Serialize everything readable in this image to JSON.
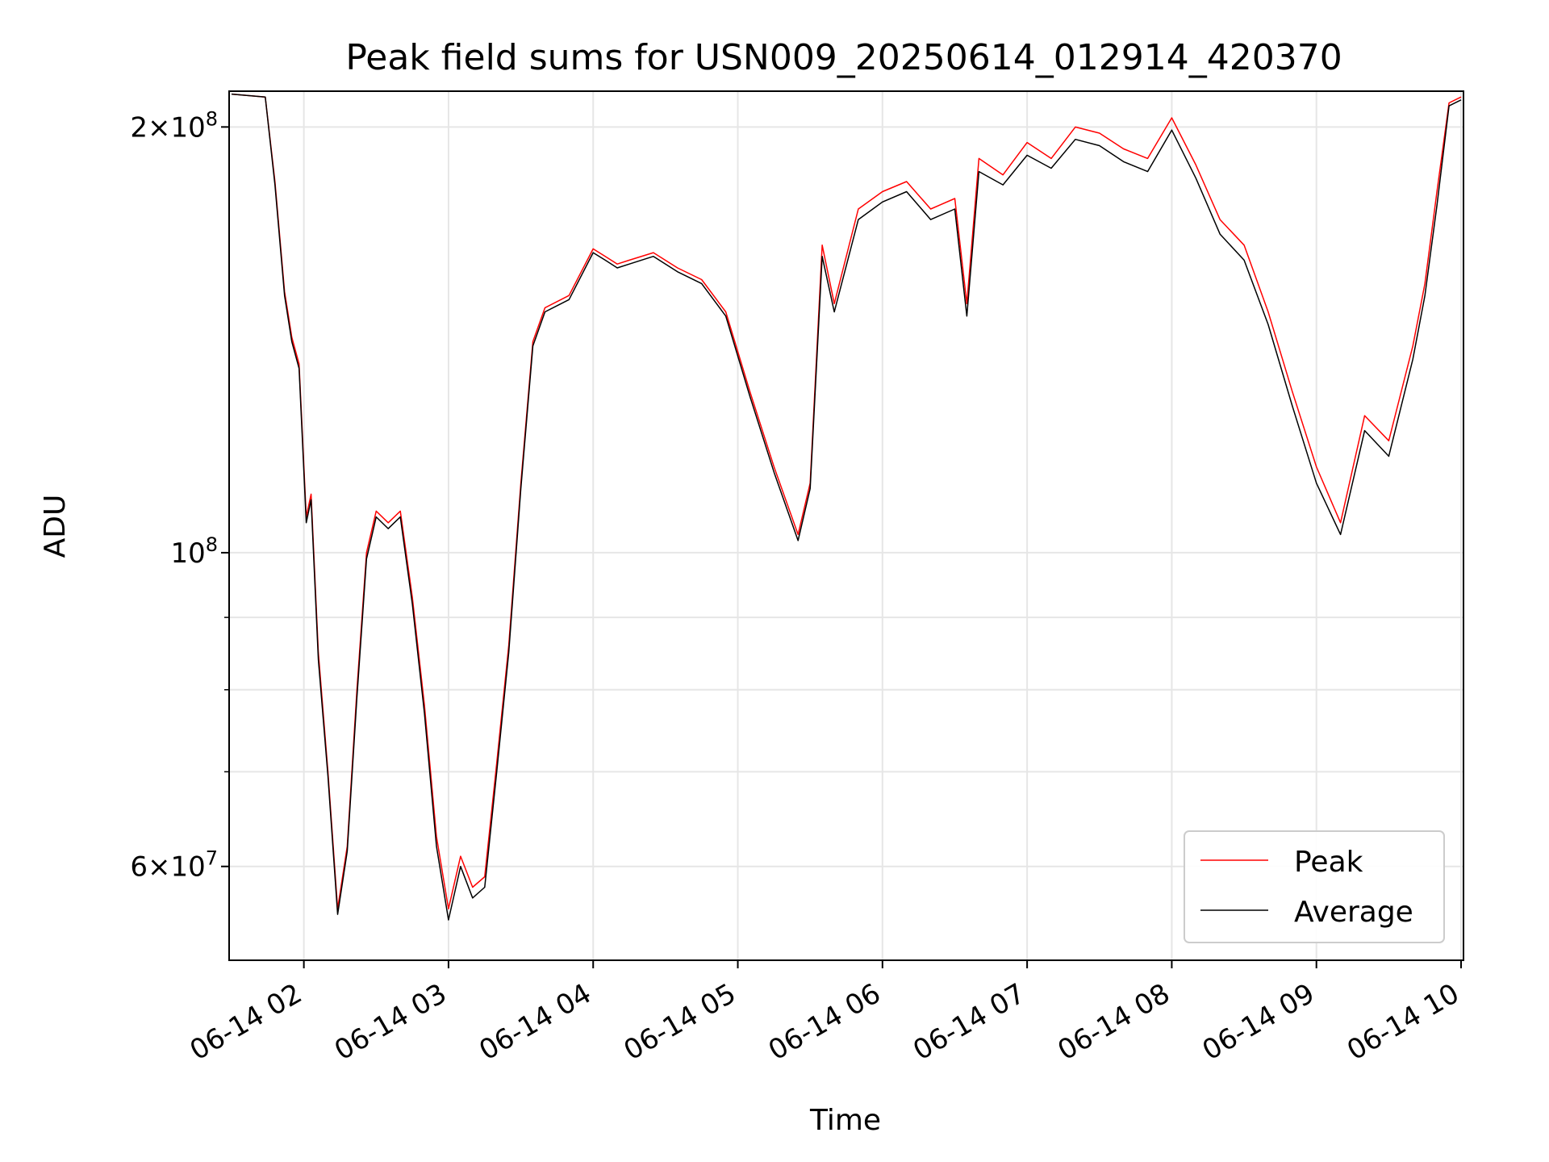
{
  "chart_data": {
    "type": "line",
    "title": "Peak field sums for USN009_20250614_012914_420370",
    "xlabel": "Time",
    "ylabel": "ADU",
    "y_scale": "log",
    "xlim": [
      "2025-06-14 01:29",
      "2025-06-14 10:01"
    ],
    "ylim": [
      51500000,
      212000000
    ],
    "grid": true,
    "legend_position": "lower right",
    "x_ticks": [
      "06-14 02",
      "06-14 03",
      "06-14 04",
      "06-14 05",
      "06-14 06",
      "06-14 07",
      "06-14 08",
      "06-14 09",
      "06-14 10"
    ],
    "x_tick_times": [
      "2025-06-14 02:00",
      "2025-06-14 03:00",
      "2025-06-14 04:00",
      "2025-06-14 05:00",
      "2025-06-14 06:00",
      "2025-06-14 07:00",
      "2025-06-14 08:00",
      "2025-06-14 09:00",
      "2025-06-14 10:00"
    ],
    "y_ticks": [
      {
        "value": 200000000,
        "mantissa": "2",
        "exponent": "8"
      },
      {
        "value": 100000000,
        "mantissa": "",
        "exponent": "8"
      },
      {
        "value": 60000000,
        "mantissa": "6",
        "exponent": "7"
      }
    ],
    "y_minor_ticks": [
      70000000,
      80000000,
      90000000,
      300000000
    ],
    "legend": [
      "Peak",
      "Average"
    ],
    "series": [
      {
        "name": "Peak",
        "color": "#ff0000",
        "x": [
          "2025-06-14 01:30",
          "2025-06-14 01:44",
          "2025-06-14 01:48",
          "2025-06-14 01:52",
          "2025-06-14 01:55",
          "2025-06-14 01:58",
          "2025-06-14 02:01",
          "2025-06-14 02:03",
          "2025-06-14 02:06",
          "2025-06-14 02:10",
          "2025-06-14 02:14",
          "2025-06-14 02:18",
          "2025-06-14 02:22",
          "2025-06-14 02:26",
          "2025-06-14 02:30",
          "2025-06-14 02:35",
          "2025-06-14 02:40",
          "2025-06-14 02:45",
          "2025-06-14 02:50",
          "2025-06-14 02:55",
          "2025-06-14 03:00",
          "2025-06-14 03:05",
          "2025-06-14 03:10",
          "2025-06-14 03:15",
          "2025-06-14 03:20",
          "2025-06-14 03:25",
          "2025-06-14 03:30",
          "2025-06-14 03:35",
          "2025-06-14 03:40",
          "2025-06-14 03:50",
          "2025-06-14 04:00",
          "2025-06-14 04:05",
          "2025-06-14 04:10",
          "2025-06-14 04:15",
          "2025-06-14 04:25",
          "2025-06-14 04:35",
          "2025-06-14 04:45",
          "2025-06-14 04:55",
          "2025-06-14 05:05",
          "2025-06-14 05:15",
          "2025-06-14 05:25",
          "2025-06-14 05:30",
          "2025-06-14 05:35",
          "2025-06-14 05:40",
          "2025-06-14 05:50",
          "2025-06-14 06:00",
          "2025-06-14 06:10",
          "2025-06-14 06:20",
          "2025-06-14 06:30",
          "2025-06-14 06:35",
          "2025-06-14 06:40",
          "2025-06-14 06:50",
          "2025-06-14 07:00",
          "2025-06-14 07:10",
          "2025-06-14 07:20",
          "2025-06-14 07:30",
          "2025-06-14 07:40",
          "2025-06-14 07:50",
          "2025-06-14 08:00",
          "2025-06-14 08:10",
          "2025-06-14 08:20",
          "2025-06-14 08:30",
          "2025-06-14 08:40",
          "2025-06-14 08:50",
          "2025-06-14 09:00",
          "2025-06-14 09:10",
          "2025-06-14 09:20",
          "2025-06-14 09:30",
          "2025-06-14 09:40",
          "2025-06-14 09:45",
          "2025-06-14 09:50",
          "2025-06-14 09:55",
          "2025-06-14 10:00"
        ],
        "y": [
          211000000,
          210000000,
          183000000,
          153000000,
          142000000,
          136000000,
          106000000,
          110000000,
          85000000,
          70000000,
          56000000,
          62000000,
          80000000,
          100000000,
          107000000,
          105000000,
          107000000,
          93000000,
          78000000,
          63000000,
          56000000,
          61000000,
          58000000,
          59000000,
          71000000,
          86000000,
          112000000,
          141000000,
          149000000,
          152000000,
          164000000,
          162000000,
          160000000,
          161000000,
          163000000,
          159000000,
          156000000,
          148000000,
          130000000,
          115000000,
          103000000,
          112000000,
          165000000,
          150000000,
          175000000,
          180000000,
          183000000,
          175000000,
          178000000,
          150000000,
          190000000,
          185000000,
          195000000,
          190000000,
          200000000,
          198000000,
          193000000,
          190000000,
          203000000,
          188000000,
          172000000,
          165000000,
          148000000,
          130000000,
          115000000,
          105000000,
          125000000,
          120000000,
          140000000,
          155000000,
          180000000,
          208000000,
          210000000
        ]
      },
      {
        "name": "Average",
        "color": "#000000",
        "x": [
          "2025-06-14 01:30",
          "2025-06-14 01:44",
          "2025-06-14 01:48",
          "2025-06-14 01:52",
          "2025-06-14 01:55",
          "2025-06-14 01:58",
          "2025-06-14 02:01",
          "2025-06-14 02:03",
          "2025-06-14 02:06",
          "2025-06-14 02:10",
          "2025-06-14 02:14",
          "2025-06-14 02:18",
          "2025-06-14 02:22",
          "2025-06-14 02:26",
          "2025-06-14 02:30",
          "2025-06-14 02:35",
          "2025-06-14 02:40",
          "2025-06-14 02:45",
          "2025-06-14 02:50",
          "2025-06-14 02:55",
          "2025-06-14 03:00",
          "2025-06-14 03:05",
          "2025-06-14 03:10",
          "2025-06-14 03:15",
          "2025-06-14 03:20",
          "2025-06-14 03:25",
          "2025-06-14 03:30",
          "2025-06-14 03:35",
          "2025-06-14 03:40",
          "2025-06-14 03:50",
          "2025-06-14 04:00",
          "2025-06-14 04:05",
          "2025-06-14 04:10",
          "2025-06-14 04:15",
          "2025-06-14 04:25",
          "2025-06-14 04:35",
          "2025-06-14 04:45",
          "2025-06-14 04:55",
          "2025-06-14 05:05",
          "2025-06-14 05:15",
          "2025-06-14 05:25",
          "2025-06-14 05:30",
          "2025-06-14 05:35",
          "2025-06-14 05:40",
          "2025-06-14 05:50",
          "2025-06-14 06:00",
          "2025-06-14 06:10",
          "2025-06-14 06:20",
          "2025-06-14 06:30",
          "2025-06-14 06:35",
          "2025-06-14 06:40",
          "2025-06-14 06:50",
          "2025-06-14 07:00",
          "2025-06-14 07:10",
          "2025-06-14 07:20",
          "2025-06-14 07:30",
          "2025-06-14 07:40",
          "2025-06-14 07:50",
          "2025-06-14 08:00",
          "2025-06-14 08:10",
          "2025-06-14 08:20",
          "2025-06-14 08:30",
          "2025-06-14 08:40",
          "2025-06-14 08:50",
          "2025-06-14 09:00",
          "2025-06-14 09:10",
          "2025-06-14 09:20",
          "2025-06-14 09:30",
          "2025-06-14 09:40",
          "2025-06-14 09:45",
          "2025-06-14 09:50",
          "2025-06-14 09:55",
          "2025-06-14 10:00"
        ],
        "y": [
          211000000,
          210000000,
          182000000,
          152000000,
          141000000,
          135000000,
          105000000,
          109000000,
          84000000,
          69500000,
          55500000,
          61500000,
          79000000,
          99000000,
          106000000,
          104000000,
          106000000,
          92000000,
          77000000,
          62000000,
          55000000,
          60000000,
          57000000,
          58000000,
          70000000,
          85000000,
          111000000,
          140000000,
          148000000,
          151000000,
          163000000,
          161000000,
          159000000,
          160000000,
          162000000,
          158000000,
          155000000,
          147000000,
          129000000,
          114000000,
          102000000,
          111000000,
          162000000,
          148000000,
          172000000,
          177000000,
          180000000,
          172000000,
          175000000,
          147000000,
          186000000,
          182000000,
          191000000,
          187000000,
          196000000,
          194000000,
          189000000,
          186000000,
          199000000,
          184000000,
          168000000,
          161000000,
          145000000,
          127000000,
          112000000,
          103000000,
          122000000,
          117000000,
          137000000,
          152000000,
          176000000,
          207000000,
          209000000
        ]
      }
    ]
  }
}
